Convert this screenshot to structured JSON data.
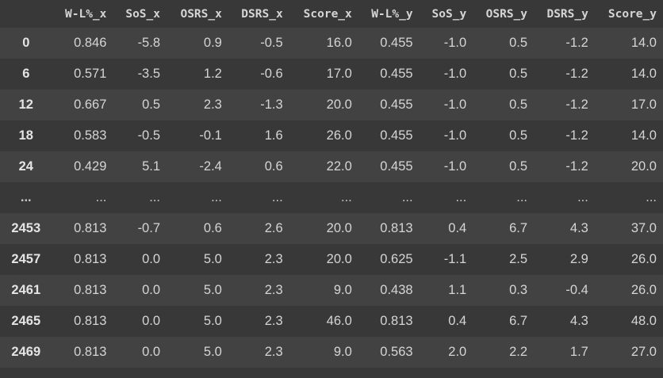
{
  "table": {
    "index_header": "",
    "columns": [
      "W-L%_x",
      "SoS_x",
      "OSRS_x",
      "DSRS_x",
      "Score_x",
      "W-L%_y",
      "SoS_y",
      "OSRS_y",
      "DSRS_y",
      "Score_y"
    ],
    "rows": [
      {
        "index": "0",
        "cells": [
          "0.846",
          "-5.8",
          "0.9",
          "-0.5",
          "16.0",
          "0.455",
          "-1.0",
          "0.5",
          "-1.2",
          "14.0"
        ]
      },
      {
        "index": "6",
        "cells": [
          "0.571",
          "-3.5",
          "1.2",
          "-0.6",
          "17.0",
          "0.455",
          "-1.0",
          "0.5",
          "-1.2",
          "14.0"
        ]
      },
      {
        "index": "12",
        "cells": [
          "0.667",
          "0.5",
          "2.3",
          "-1.3",
          "20.0",
          "0.455",
          "-1.0",
          "0.5",
          "-1.2",
          "17.0"
        ]
      },
      {
        "index": "18",
        "cells": [
          "0.583",
          "-0.5",
          "-0.1",
          "1.6",
          "26.0",
          "0.455",
          "-1.0",
          "0.5",
          "-1.2",
          "14.0"
        ]
      },
      {
        "index": "24",
        "cells": [
          "0.429",
          "5.1",
          "-2.4",
          "0.6",
          "22.0",
          "0.455",
          "-1.0",
          "0.5",
          "-1.2",
          "20.0"
        ]
      },
      {
        "index": "...",
        "cells": [
          "...",
          "...",
          "...",
          "...",
          "...",
          "...",
          "...",
          "...",
          "...",
          "..."
        ]
      },
      {
        "index": "2453",
        "cells": [
          "0.813",
          "-0.7",
          "0.6",
          "2.6",
          "20.0",
          "0.813",
          "0.4",
          "6.7",
          "4.3",
          "37.0"
        ]
      },
      {
        "index": "2457",
        "cells": [
          "0.813",
          "0.0",
          "5.0",
          "2.3",
          "20.0",
          "0.625",
          "-1.1",
          "2.5",
          "2.9",
          "26.0"
        ]
      },
      {
        "index": "2461",
        "cells": [
          "0.813",
          "0.0",
          "5.0",
          "2.3",
          "9.0",
          "0.438",
          "1.1",
          "0.3",
          "-0.4",
          "26.0"
        ]
      },
      {
        "index": "2465",
        "cells": [
          "0.813",
          "0.0",
          "5.0",
          "2.3",
          "46.0",
          "0.813",
          "0.4",
          "6.7",
          "4.3",
          "48.0"
        ]
      },
      {
        "index": "2469",
        "cells": [
          "0.813",
          "0.0",
          "5.0",
          "2.3",
          "9.0",
          "0.563",
          "2.0",
          "2.2",
          "1.7",
          "27.0"
        ]
      }
    ]
  },
  "colors": {
    "background": "#383838",
    "stripe": "#424242",
    "text": "#d5d5d5"
  }
}
